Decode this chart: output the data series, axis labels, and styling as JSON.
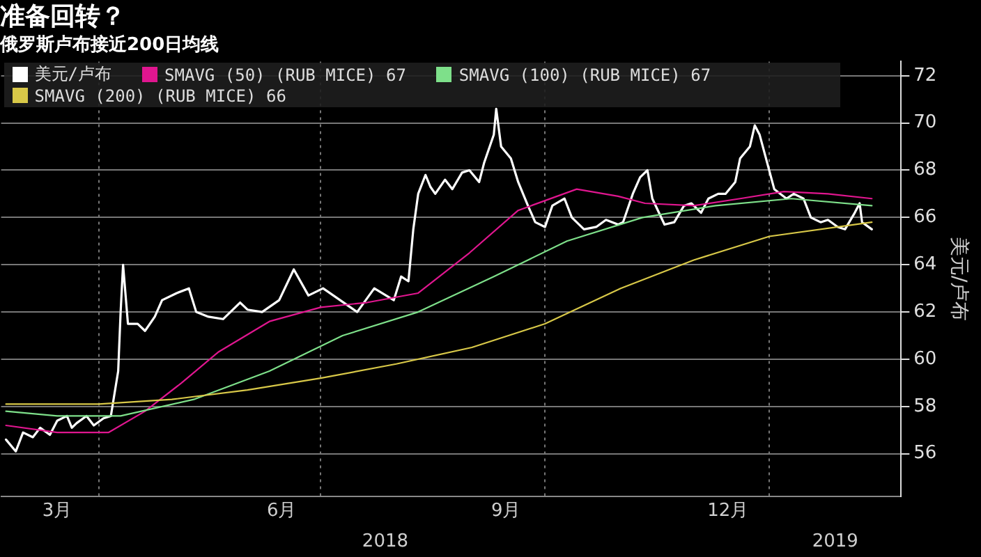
{
  "chart_data": {
    "type": "line",
    "title": "准备回转？",
    "subtitle": "俄罗斯卢布接近200日均线",
    "ylabel": "美元/卢布",
    "xlim": [
      "2018-02-20",
      "2019-02-24"
    ],
    "xticks": [
      {
        "value": "2018-03-15",
        "label": "3月"
      },
      {
        "value": "2018-04-01",
        "label": null
      },
      {
        "value": "2018-06-15",
        "label": "6月"
      },
      {
        "value": "2018-07-01",
        "label": null
      },
      {
        "value": "2018-09-15",
        "label": "9月"
      },
      {
        "value": "2018-10-01",
        "label": null
      },
      {
        "value": "2018-12-15",
        "label": "12月"
      },
      {
        "value": "2019-01-01",
        "label": null
      }
    ],
    "ylim": [
      54.2,
      72.6
    ],
    "yticks": [
      56,
      58,
      60,
      62,
      64,
      66,
      68,
      70,
      72
    ],
    "grid": true,
    "legend": "top left",
    "annotations": [
      "2018",
      "2019"
    ],
    "series": [
      {
        "name": "美元/卢布",
        "color": "#ffffff",
        "x": [
          "2018-02-22",
          "2018-02-26",
          "2018-03-01",
          "2018-03-05",
          "2018-03-08",
          "2018-03-12",
          "2018-03-15",
          "2018-03-19",
          "2018-03-21",
          "2018-03-23",
          "2018-03-27",
          "2018-03-30",
          "2018-04-03",
          "2018-04-06",
          "2018-04-09",
          "2018-04-10",
          "2018-04-11",
          "2018-04-13",
          "2018-04-17",
          "2018-04-20",
          "2018-04-24",
          "2018-04-27",
          "2018-05-03",
          "2018-05-08",
          "2018-05-11",
          "2018-05-16",
          "2018-05-22",
          "2018-05-29",
          "2018-06-01",
          "2018-06-07",
          "2018-06-14",
          "2018-06-20",
          "2018-06-26",
          "2018-07-02",
          "2018-07-09",
          "2018-07-16",
          "2018-07-23",
          "2018-07-31",
          "2018-08-03",
          "2018-08-06",
          "2018-08-08",
          "2018-08-10",
          "2018-08-13",
          "2018-08-15",
          "2018-08-17",
          "2018-08-21",
          "2018-08-24",
          "2018-08-28",
          "2018-08-31",
          "2018-09-04",
          "2018-09-06",
          "2018-09-10",
          "2018-09-11",
          "2018-09-13",
          "2018-09-17",
          "2018-09-20",
          "2018-09-24",
          "2018-09-27",
          "2018-10-01",
          "2018-10-04",
          "2018-10-09",
          "2018-10-12",
          "2018-10-17",
          "2018-10-22",
          "2018-10-26",
          "2018-10-31",
          "2018-11-02",
          "2018-11-06",
          "2018-11-09",
          "2018-11-12",
          "2018-11-14",
          "2018-11-19",
          "2018-11-23",
          "2018-11-27",
          "2018-11-30",
          "2018-12-04",
          "2018-12-07",
          "2018-12-11",
          "2018-12-14",
          "2018-12-18",
          "2018-12-20",
          "2018-12-24",
          "2018-12-26",
          "2018-12-28",
          "2019-01-03",
          "2019-01-08",
          "2019-01-11",
          "2019-01-15",
          "2019-01-18",
          "2019-01-22",
          "2019-01-25",
          "2019-01-29",
          "2019-02-01",
          "2019-02-05",
          "2019-02-07",
          "2019-02-08",
          "2019-02-12"
        ],
        "values": [
          56.6,
          56.1,
          56.9,
          56.7,
          57.1,
          56.8,
          57.4,
          57.6,
          57.1,
          57.3,
          57.6,
          57.2,
          57.5,
          57.6,
          59.5,
          62.0,
          64.0,
          61.5,
          61.5,
          61.2,
          61.8,
          62.5,
          62.8,
          63.0,
          62.0,
          61.8,
          61.7,
          62.4,
          62.1,
          62.0,
          62.5,
          63.8,
          62.7,
          63.0,
          62.5,
          62.0,
          63.0,
          62.5,
          63.5,
          63.3,
          65.5,
          67.0,
          67.8,
          67.3,
          67.0,
          67.6,
          67.2,
          67.9,
          68.0,
          67.5,
          68.3,
          69.5,
          70.6,
          69.0,
          68.5,
          67.5,
          66.5,
          65.8,
          65.6,
          66.5,
          66.8,
          66.0,
          65.5,
          65.6,
          65.9,
          65.7,
          65.8,
          67.0,
          67.7,
          68.0,
          66.8,
          65.7,
          65.8,
          66.5,
          66.6,
          66.2,
          66.8,
          67.0,
          67.0,
          67.5,
          68.5,
          69.0,
          69.9,
          69.5,
          67.2,
          66.8,
          67.0,
          66.8,
          66.0,
          65.8,
          65.9,
          65.6,
          65.5,
          66.2,
          66.6,
          65.8,
          65.5
        ]
      },
      {
        "name": "SMAVG (50) (RUB MICE) 67",
        "color": "#e0168f",
        "x": [
          "2018-02-22",
          "2018-03-15",
          "2018-04-05",
          "2018-04-20",
          "2018-05-05",
          "2018-05-20",
          "2018-06-10",
          "2018-07-01",
          "2018-07-20",
          "2018-08-10",
          "2018-08-31",
          "2018-09-20",
          "2018-10-14",
          "2018-10-31",
          "2018-11-11",
          "2018-12-01",
          "2018-12-20",
          "2019-01-07",
          "2019-01-25",
          "2019-02-12"
        ],
        "values": [
          57.2,
          56.9,
          56.9,
          57.8,
          59.0,
          60.3,
          61.6,
          62.2,
          62.4,
          62.8,
          64.5,
          66.3,
          67.2,
          66.9,
          66.6,
          66.5,
          66.8,
          67.1,
          67.0,
          66.8
        ]
      },
      {
        "name": "SMAVG (100) (RUB MICE) 67",
        "color": "#7ee08a",
        "x": [
          "2018-02-22",
          "2018-03-15",
          "2018-04-10",
          "2018-05-10",
          "2018-06-10",
          "2018-07-10",
          "2018-08-10",
          "2018-09-10",
          "2018-10-10",
          "2018-11-10",
          "2018-12-10",
          "2019-01-10",
          "2019-02-12"
        ],
        "values": [
          57.8,
          57.6,
          57.6,
          58.3,
          59.5,
          61.0,
          62.0,
          63.5,
          65.0,
          66.0,
          66.5,
          66.8,
          66.5
        ]
      },
      {
        "name": "SMAVG (200) (RUB MICE) 66",
        "color": "#d8c848",
        "x": [
          "2018-02-22",
          "2018-04-01",
          "2018-05-01",
          "2018-06-01",
          "2018-07-01",
          "2018-08-01",
          "2018-09-01",
          "2018-10-01",
          "2018-11-01",
          "2018-12-01",
          "2019-01-01",
          "2019-02-12"
        ],
        "values": [
          58.1,
          58.1,
          58.3,
          58.7,
          59.2,
          59.8,
          60.5,
          61.5,
          63.0,
          64.2,
          65.2,
          65.8
        ]
      }
    ]
  }
}
